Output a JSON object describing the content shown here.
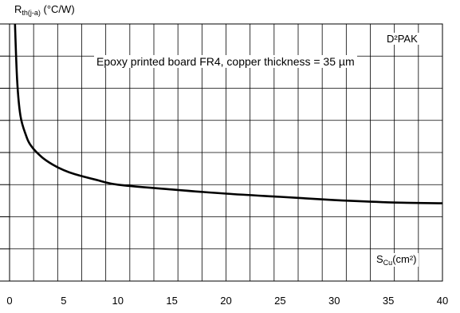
{
  "chart_data": {
    "type": "line",
    "title": "",
    "ylabel_main": "R",
    "ylabel_sub": "th(j-a)",
    "ylabel_unit": " (°C/W)",
    "xlabel_main": "S",
    "xlabel_sub": "Cu",
    "xlabel_unit": "(cm²)",
    "package_label": "D²PAK",
    "board_annotation": "Epoxy printed board FR4, copper thickness = 35 µm",
    "xlim": [
      0,
      40
    ],
    "x_ticks": [
      "0",
      "5",
      "10",
      "15",
      "20",
      "25",
      "30",
      "35",
      "40"
    ],
    "grid": true,
    "series": [
      {
        "x": [
          0.5,
          0.7,
          1,
          1.5,
          2,
          3,
          4,
          5,
          6,
          8,
          10,
          15,
          20,
          25,
          30,
          35,
          40
        ],
        "y": [
          8.0,
          6.25,
          5.15,
          4.55,
          4.2,
          3.85,
          3.62,
          3.45,
          3.33,
          3.15,
          3.0,
          2.85,
          2.72,
          2.62,
          2.52,
          2.45,
          2.42
        ]
      }
    ]
  }
}
